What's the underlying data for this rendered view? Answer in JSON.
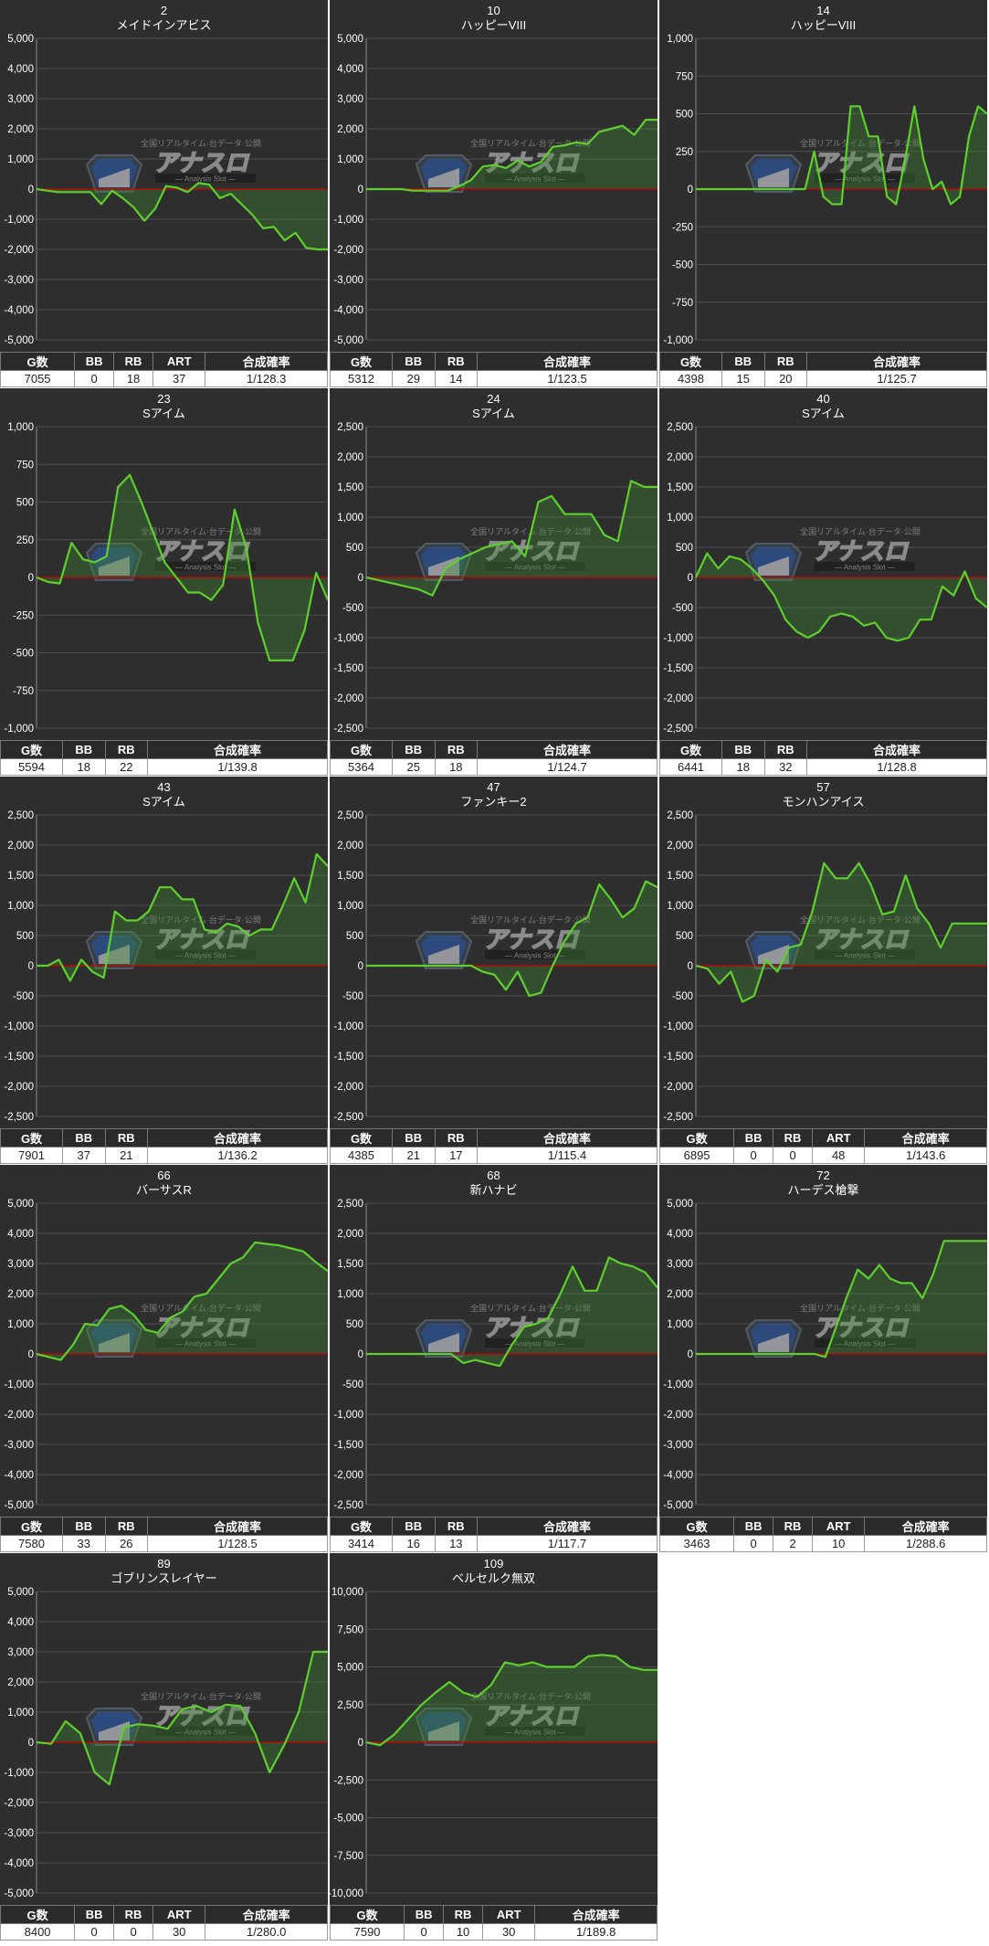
{
  "chart_data": [
    {
      "type": "area",
      "number": "2",
      "name": "メイドインアビス",
      "ylim": [
        -5000,
        5000
      ],
      "yticks": [
        5000,
        4000,
        3000,
        2000,
        1000,
        0,
        -1000,
        -2000,
        -3000,
        -4000,
        -5000
      ],
      "values": [
        0,
        -50,
        -100,
        -100,
        -100,
        -100,
        -500,
        -50,
        -300,
        -600,
        -1050,
        -650,
        100,
        50,
        -100,
        200,
        150,
        -300,
        -150,
        -500,
        -850,
        -1300,
        -1250,
        -1700,
        -1450,
        -1950,
        -2000,
        -2000
      ],
      "stats": {
        "headers": [
          "G数",
          "BB",
          "RB",
          "ART",
          "合成確率"
        ],
        "values": [
          "7055",
          "0",
          "18",
          "37",
          "1/128.3"
        ]
      }
    },
    {
      "type": "area",
      "number": "10",
      "name": "ハッピーVIII",
      "ylim": [
        -5000,
        5000
      ],
      "yticks": [
        5000,
        4000,
        3000,
        2000,
        1000,
        0,
        -1000,
        -2000,
        -3000,
        -4000,
        -5000
      ],
      "values": [
        0,
        0,
        0,
        0,
        -50,
        -50,
        -50,
        -50,
        100,
        300,
        750,
        800,
        700,
        950,
        750,
        900,
        1400,
        1450,
        1550,
        1500,
        1900,
        2000,
        2100,
        1800,
        2300,
        2300
      ],
      "stats": {
        "headers": [
          "G数",
          "BB",
          "RB",
          "合成確率"
        ],
        "values": [
          "5312",
          "29",
          "14",
          "1/123.5"
        ]
      }
    },
    {
      "type": "area",
      "number": "14",
      "name": "ハッピーVIII",
      "ylim": [
        -1000,
        1000
      ],
      "yticks": [
        1000,
        750,
        500,
        250,
        0,
        -250,
        -500,
        -750,
        -1000
      ],
      "values": [
        0,
        0,
        0,
        0,
        0,
        0,
        0,
        0,
        0,
        0,
        0,
        0,
        0,
        250,
        -50,
        -100,
        -100,
        550,
        550,
        350,
        350,
        -50,
        -100,
        200,
        550,
        200,
        0,
        50,
        -100,
        -50,
        350,
        550,
        500
      ],
      "stats": {
        "headers": [
          "G数",
          "BB",
          "RB",
          "合成確率"
        ],
        "values": [
          "4398",
          "15",
          "20",
          "1/125.7"
        ]
      }
    },
    {
      "type": "area",
      "number": "23",
      "name": "Sアイム",
      "ylim": [
        -1000,
        1000
      ],
      "yticks": [
        1000,
        750,
        500,
        250,
        0,
        -250,
        -500,
        -750,
        -1000
      ],
      "values": [
        0,
        -30,
        -40,
        230,
        120,
        100,
        140,
        600,
        680,
        500,
        300,
        100,
        0,
        -100,
        -100,
        -150,
        -50,
        450,
        200,
        -300,
        -550,
        -550,
        -550,
        -350,
        30,
        -150
      ],
      "stats": {
        "headers": [
          "G数",
          "BB",
          "RB",
          "合成確率"
        ],
        "values": [
          "5594",
          "18",
          "22",
          "1/139.8"
        ]
      }
    },
    {
      "type": "area",
      "number": "24",
      "name": "Sアイム",
      "ylim": [
        -2500,
        2500
      ],
      "yticks": [
        2500,
        2000,
        1500,
        1000,
        500,
        0,
        -500,
        -1000,
        -1500,
        -2000,
        -2500
      ],
      "values": [
        0,
        -50,
        -100,
        -150,
        -200,
        -300,
        150,
        300,
        400,
        500,
        550,
        600,
        350,
        1250,
        1350,
        1050,
        1050,
        1050,
        700,
        600,
        1600,
        1500,
        1500
      ],
      "stats": {
        "headers": [
          "G数",
          "BB",
          "RB",
          "合成確率"
        ],
        "values": [
          "5364",
          "25",
          "18",
          "1/124.7"
        ]
      }
    },
    {
      "type": "area",
      "number": "40",
      "name": "Sアイム",
      "ylim": [
        -2500,
        2500
      ],
      "yticks": [
        2500,
        2000,
        1500,
        1000,
        500,
        0,
        -500,
        -1000,
        -1500,
        -2000,
        -2500
      ],
      "values": [
        0,
        400,
        150,
        350,
        300,
        150,
        -50,
        -300,
        -700,
        -900,
        -1000,
        -900,
        -650,
        -600,
        -650,
        -800,
        -750,
        -1000,
        -1050,
        -1000,
        -700,
        -700,
        -150,
        -300,
        100,
        -350,
        -500
      ],
      "stats": {
        "headers": [
          "G数",
          "BB",
          "RB",
          "合成確率"
        ],
        "values": [
          "6441",
          "18",
          "32",
          "1/128.8"
        ]
      }
    },
    {
      "type": "area",
      "number": "43",
      "name": "Sアイム",
      "ylim": [
        -2500,
        2500
      ],
      "yticks": [
        2500,
        2000,
        1500,
        1000,
        500,
        0,
        -500,
        -1000,
        -1500,
        -2000,
        -2500
      ],
      "values": [
        0,
        0,
        100,
        -250,
        100,
        -100,
        -200,
        900,
        750,
        750,
        900,
        1300,
        1300,
        1100,
        1100,
        600,
        550,
        700,
        650,
        500,
        600,
        600,
        1000,
        1450,
        1050,
        1850,
        1650
      ],
      "stats": {
        "headers": [
          "G数",
          "BB",
          "RB",
          "合成確率"
        ],
        "values": [
          "7901",
          "37",
          "21",
          "1/136.2"
        ]
      }
    },
    {
      "type": "area",
      "number": "47",
      "name": "ファンキー2",
      "ylim": [
        -2500,
        2500
      ],
      "yticks": [
        2500,
        2000,
        1500,
        1000,
        500,
        0,
        -500,
        -1000,
        -1500,
        -2000,
        -2500
      ],
      "values": [
        0,
        0,
        0,
        0,
        0,
        0,
        0,
        0,
        0,
        0,
        -100,
        -150,
        -400,
        -100,
        -500,
        -450,
        0,
        400,
        700,
        800,
        1350,
        1100,
        800,
        950,
        1400,
        1300
      ],
      "stats": {
        "headers": [
          "G数",
          "BB",
          "RB",
          "合成確率"
        ],
        "values": [
          "4385",
          "21",
          "17",
          "1/115.4"
        ]
      }
    },
    {
      "type": "area",
      "number": "57",
      "name": "モンハンアイス",
      "ylim": [
        -2500,
        2500
      ],
      "yticks": [
        2500,
        2000,
        1500,
        1000,
        500,
        0,
        -500,
        -1000,
        -1500,
        -2000,
        -2500
      ],
      "values": [
        0,
        -50,
        -300,
        -100,
        -600,
        -500,
        100,
        -100,
        300,
        350,
        900,
        1700,
        1450,
        1450,
        1700,
        1350,
        850,
        900,
        1500,
        950,
        700,
        300,
        700,
        700,
        700,
        700
      ],
      "stats": {
        "headers": [
          "G数",
          "BB",
          "RB",
          "ART",
          "合成確率"
        ],
        "values": [
          "6895",
          "0",
          "0",
          "48",
          "1/143.6"
        ]
      }
    },
    {
      "type": "area",
      "number": "66",
      "name": "バーサスR",
      "ylim": [
        -5000,
        5000
      ],
      "yticks": [
        5000,
        4000,
        3000,
        2000,
        1000,
        0,
        -1000,
        -2000,
        -3000,
        -4000,
        -5000
      ],
      "values": [
        0,
        -100,
        -200,
        300,
        1000,
        950,
        1500,
        1600,
        1300,
        800,
        700,
        1200,
        1400,
        1900,
        2000,
        2500,
        3000,
        3200,
        3700,
        3650,
        3600,
        3500,
        3400,
        3050,
        2750
      ],
      "stats": {
        "headers": [
          "G数",
          "BB",
          "RB",
          "合成確率"
        ],
        "values": [
          "7580",
          "33",
          "26",
          "1/128.5"
        ]
      }
    },
    {
      "type": "area",
      "number": "68",
      "name": "新ハナビ",
      "ylim": [
        -2500,
        2500
      ],
      "yticks": [
        2500,
        2000,
        1500,
        1000,
        500,
        0,
        -500,
        -1000,
        -1500,
        -2000,
        -2500
      ],
      "values": [
        0,
        0,
        0,
        0,
        0,
        0,
        0,
        0,
        -150,
        -100,
        -150,
        -200,
        150,
        450,
        500,
        600,
        1000,
        1450,
        1050,
        1050,
        1600,
        1500,
        1450,
        1350,
        1100
      ],
      "stats": {
        "headers": [
          "G数",
          "BB",
          "RB",
          "合成確率"
        ],
        "values": [
          "3414",
          "16",
          "13",
          "1/117.7"
        ]
      }
    },
    {
      "type": "area",
      "number": "72",
      "name": "ハーデス槍撃",
      "ylim": [
        -5000,
        5000
      ],
      "yticks": [
        5000,
        4000,
        3000,
        2000,
        1000,
        0,
        -1000,
        -2000,
        -3000,
        -4000,
        -5000
      ],
      "values": [
        0,
        0,
        0,
        0,
        0,
        0,
        0,
        0,
        0,
        0,
        0,
        0,
        -100,
        900,
        1900,
        2800,
        2500,
        2950,
        2500,
        2350,
        2350,
        1850,
        2650,
        3750,
        3750,
        3750,
        3750,
        3750
      ],
      "stats": {
        "headers": [
          "G数",
          "BB",
          "RB",
          "ART",
          "合成確率"
        ],
        "values": [
          "3463",
          "0",
          "2",
          "10",
          "1/288.6"
        ]
      }
    },
    {
      "type": "area",
      "number": "89",
      "name": "ゴブリンスレイヤー",
      "ylim": [
        -5000,
        5000
      ],
      "yticks": [
        5000,
        4000,
        3000,
        2000,
        1000,
        0,
        -1000,
        -2000,
        -3000,
        -4000,
        -5000
      ],
      "values": [
        0,
        -50,
        700,
        300,
        -1000,
        -1400,
        500,
        600,
        550,
        450,
        1100,
        1200,
        1000,
        1250,
        1200,
        300,
        -1000,
        -100,
        1000,
        3000,
        3000
      ],
      "stats": {
        "headers": [
          "G数",
          "BB",
          "RB",
          "ART",
          "合成確率"
        ],
        "values": [
          "8400",
          "0",
          "0",
          "30",
          "1/280.0"
        ]
      }
    },
    {
      "type": "area",
      "number": "109",
      "name": "ベルセルク無双",
      "ylim": [
        -10000,
        10000
      ],
      "yticks": [
        10000,
        7500,
        5000,
        2500,
        0,
        -2500,
        -5000,
        -7500,
        -10000
      ],
      "values": [
        0,
        -200,
        500,
        1500,
        2500,
        3300,
        4000,
        3300,
        3000,
        3800,
        5300,
        5100,
        5300,
        5000,
        5000,
        5000,
        5700,
        5800,
        5700,
        5000,
        4800,
        4800
      ],
      "stats": {
        "headers": [
          "G数",
          "BB",
          "RB",
          "ART",
          "合成確率"
        ],
        "values": [
          "7590",
          "0",
          "10",
          "30",
          "1/189.8"
        ]
      }
    }
  ],
  "watermark": {
    "top_text": "全国リアルタイム·台データ·公開",
    "main_text": "アナスロ",
    "sub_text": "Analysis Slot"
  },
  "colors": {
    "background": "#2e2e2e",
    "grid": "#4f4f4f",
    "line": "#5ed02d",
    "fill": "rgba(60,140,50,0.35)",
    "zero_line": "#cc0000",
    "text": "#ffffff"
  }
}
